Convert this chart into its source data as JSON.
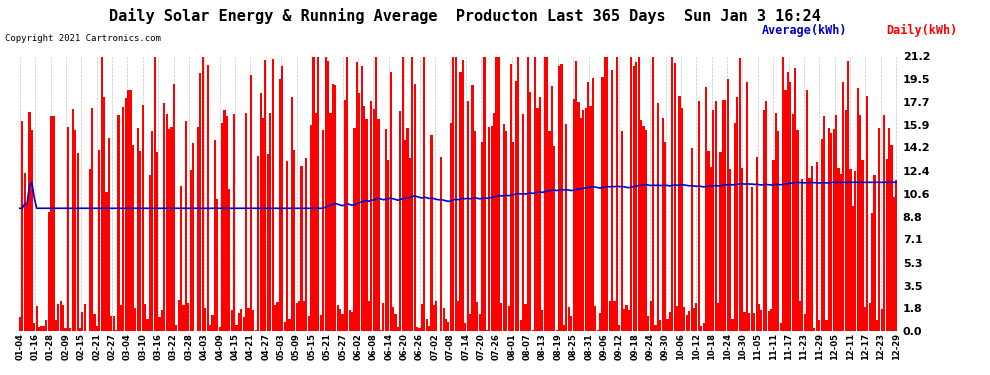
{
  "title": "Daily Solar Energy & Running Average  Producton Last 365 Days  Sun Jan 3 16:24",
  "copyright": "Copyright 2021 Cartronics.com",
  "ylabel_right_ticks": [
    0.0,
    1.8,
    3.5,
    5.3,
    7.1,
    8.8,
    10.6,
    12.4,
    14.2,
    15.9,
    17.7,
    19.5,
    21.2
  ],
  "ylim": [
    0,
    21.2
  ],
  "bar_color": "#ff0000",
  "avg_color": "#0000cc",
  "background_color": "#ffffff",
  "grid_color": "#aaaaaa",
  "title_fontsize": 11,
  "legend_avg_label": "Average(kWh)",
  "legend_daily_label": "Daily(kWh)",
  "n_days": 365,
  "avg_level": 10.6,
  "date_labels": [
    "01-04",
    "01-16",
    "01-28",
    "02-09",
    "02-15",
    "02-21",
    "02-27",
    "03-04",
    "03-10",
    "03-16",
    "03-22",
    "03-28",
    "04-03",
    "04-09",
    "04-15",
    "04-21",
    "04-27",
    "05-03",
    "05-09",
    "05-15",
    "05-21",
    "05-27",
    "06-02",
    "06-08",
    "06-14",
    "06-20",
    "06-26",
    "07-02",
    "07-08",
    "07-14",
    "07-20",
    "07-26",
    "08-01",
    "08-07",
    "08-13",
    "08-19",
    "08-25",
    "08-31",
    "09-06",
    "09-12",
    "09-18",
    "09-24",
    "09-30",
    "10-06",
    "10-12",
    "10-18",
    "10-24",
    "10-30",
    "11-05",
    "11-11",
    "11-17",
    "11-23",
    "11-29",
    "12-05",
    "12-11",
    "12-17",
    "12-23",
    "12-29"
  ]
}
